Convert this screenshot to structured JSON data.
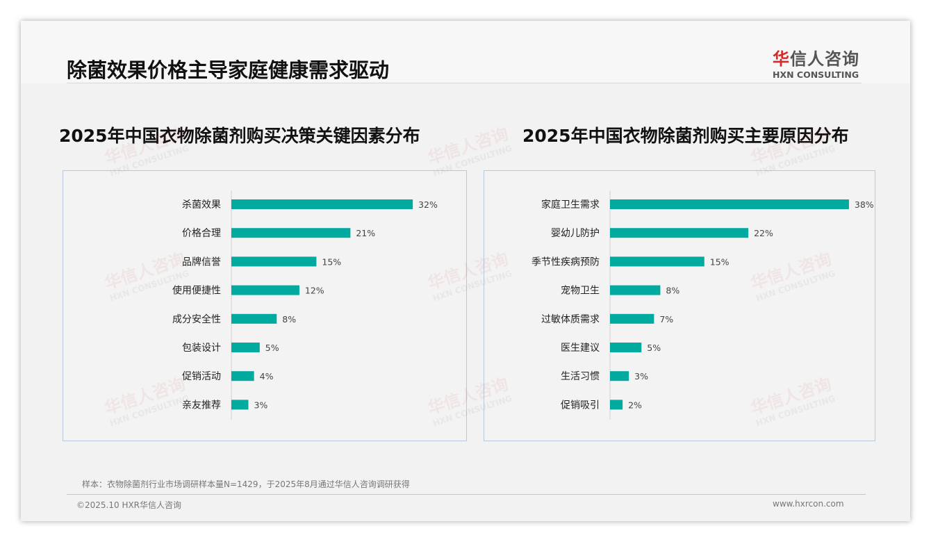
{
  "header": {
    "title": "除菌效果价格主导家庭健康需求驱动",
    "logo_cn_red": "华",
    "logo_cn": "信人咨询",
    "logo_en": "HXN CONSULTING"
  },
  "watermark": {
    "cn": "华信人咨询",
    "en": "HXN CONSULTING"
  },
  "colors": {
    "bar": "#00aa9f"
  },
  "chart_data": [
    {
      "type": "bar",
      "orientation": "horizontal",
      "title": "2025年中国衣物除菌剂购买决策关键因素分布",
      "categories": [
        "杀菌效果",
        "价格合理",
        "品牌信誉",
        "使用便捷性",
        "成分安全性",
        "包装设计",
        "促销活动",
        "亲友推荐"
      ],
      "values": [
        32,
        21,
        15,
        12,
        8,
        5,
        4,
        3
      ],
      "labels": [
        "32%",
        "21%",
        "15%",
        "12%",
        "8%",
        "5%",
        "4%",
        "3%"
      ],
      "unit": "%",
      "xlim": [
        0,
        40
      ]
    },
    {
      "type": "bar",
      "orientation": "horizontal",
      "title": "2025年中国衣物除菌剂购买主要原因分布",
      "categories": [
        "家庭卫生需求",
        "婴幼儿防护",
        "季节性疾病预防",
        "宠物卫生",
        "过敏体质需求",
        "医生建议",
        "生活习惯",
        "促销吸引"
      ],
      "values": [
        38,
        22,
        15,
        8,
        7,
        5,
        3,
        2
      ],
      "labels": [
        "38%",
        "22%",
        "15%",
        "8%",
        "7%",
        "5%",
        "3%",
        "2%"
      ],
      "unit": "%",
      "xlim": [
        0,
        40
      ]
    }
  ],
  "footer": {
    "note": "样本：衣物除菌剂行业市场调研样本量N=1429，于2025年8月通过华信人咨询调研获得",
    "copyright": "©2025.10 HXR华信人咨询",
    "website": "www.hxrcon.com"
  }
}
